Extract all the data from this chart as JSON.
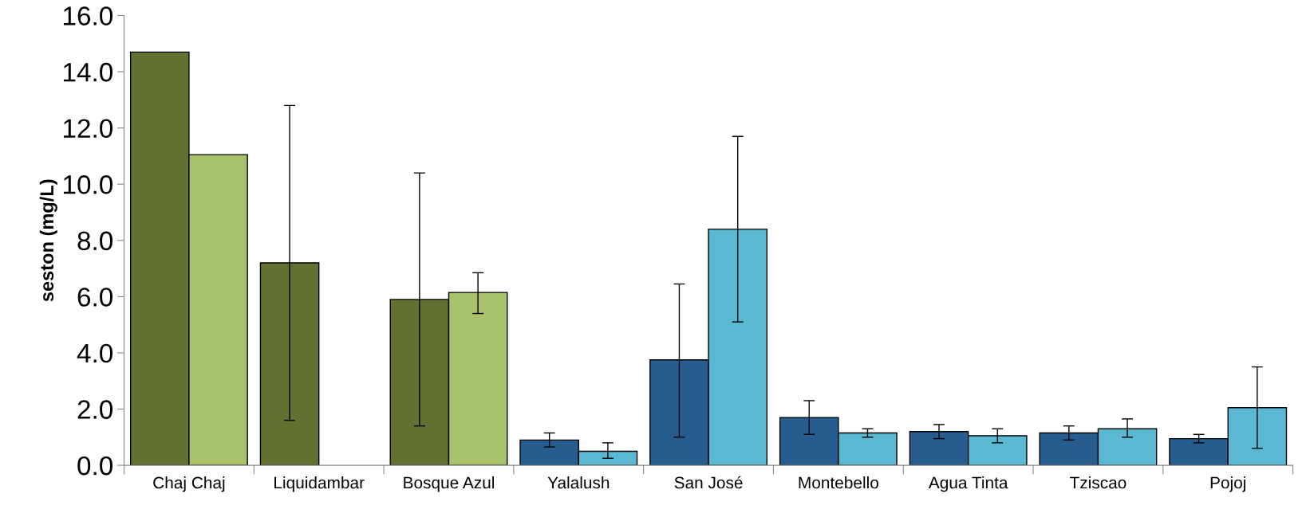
{
  "chart_data": {
    "type": "bar",
    "ylabel": "seston (mg/L)",
    "categories": [
      "Chaj Chaj",
      "Liquidambar",
      "Bosque Azul",
      "Yalalush",
      "San José",
      "Montebello",
      "Agua Tinta",
      "Tziscao",
      "Pojoj"
    ],
    "series": [
      {
        "colors": [
          "#627032",
          "#627032",
          "#627032",
          "#275d8e",
          "#275d8e",
          "#275d8e",
          "#275d8e",
          "#275d8e",
          "#275d8e"
        ],
        "values": [
          14.7,
          7.2,
          5.9,
          0.9,
          3.75,
          1.7,
          1.2,
          1.15,
          0.95
        ],
        "errors": [
          null,
          [
            1.6,
            12.8
          ],
          [
            1.4,
            10.4
          ],
          [
            0.65,
            1.15
          ],
          [
            1.0,
            6.45
          ],
          [
            1.1,
            2.3
          ],
          [
            0.95,
            1.45
          ],
          [
            0.9,
            1.4
          ],
          [
            0.8,
            1.1
          ]
        ]
      },
      {
        "colors": [
          "#a7c26b",
          "#a7c26b",
          "#a7c26b",
          "#5ab8d2",
          "#5ab8d2",
          "#5ab8d2",
          "#5ab8d2",
          "#5ab8d2",
          "#5ab8d2"
        ],
        "values": [
          11.05,
          null,
          6.15,
          0.5,
          8.4,
          1.15,
          1.05,
          1.3,
          2.05
        ],
        "errors": [
          null,
          null,
          [
            5.4,
            6.85
          ],
          [
            0.25,
            0.8
          ],
          [
            5.1,
            11.7
          ],
          [
            1.0,
            1.3
          ],
          [
            0.8,
            1.3
          ],
          [
            1.0,
            1.65
          ],
          [
            0.6,
            3.5
          ]
        ]
      }
    ],
    "ylim": [
      0,
      16
    ],
    "yticks": [
      {
        "value": 0,
        "label": "0.0"
      },
      {
        "value": 2,
        "label": "2.0"
      },
      {
        "value": 4,
        "label": "4.0"
      },
      {
        "value": 6,
        "label": "6.0"
      },
      {
        "value": 8,
        "label": "8.0"
      },
      {
        "value": 10,
        "label": "10.0"
      },
      {
        "value": 12,
        "label": "12.0"
      },
      {
        "value": 14,
        "label": "14.0"
      },
      {
        "value": 16,
        "label": "16.0"
      }
    ],
    "grid": false
  }
}
